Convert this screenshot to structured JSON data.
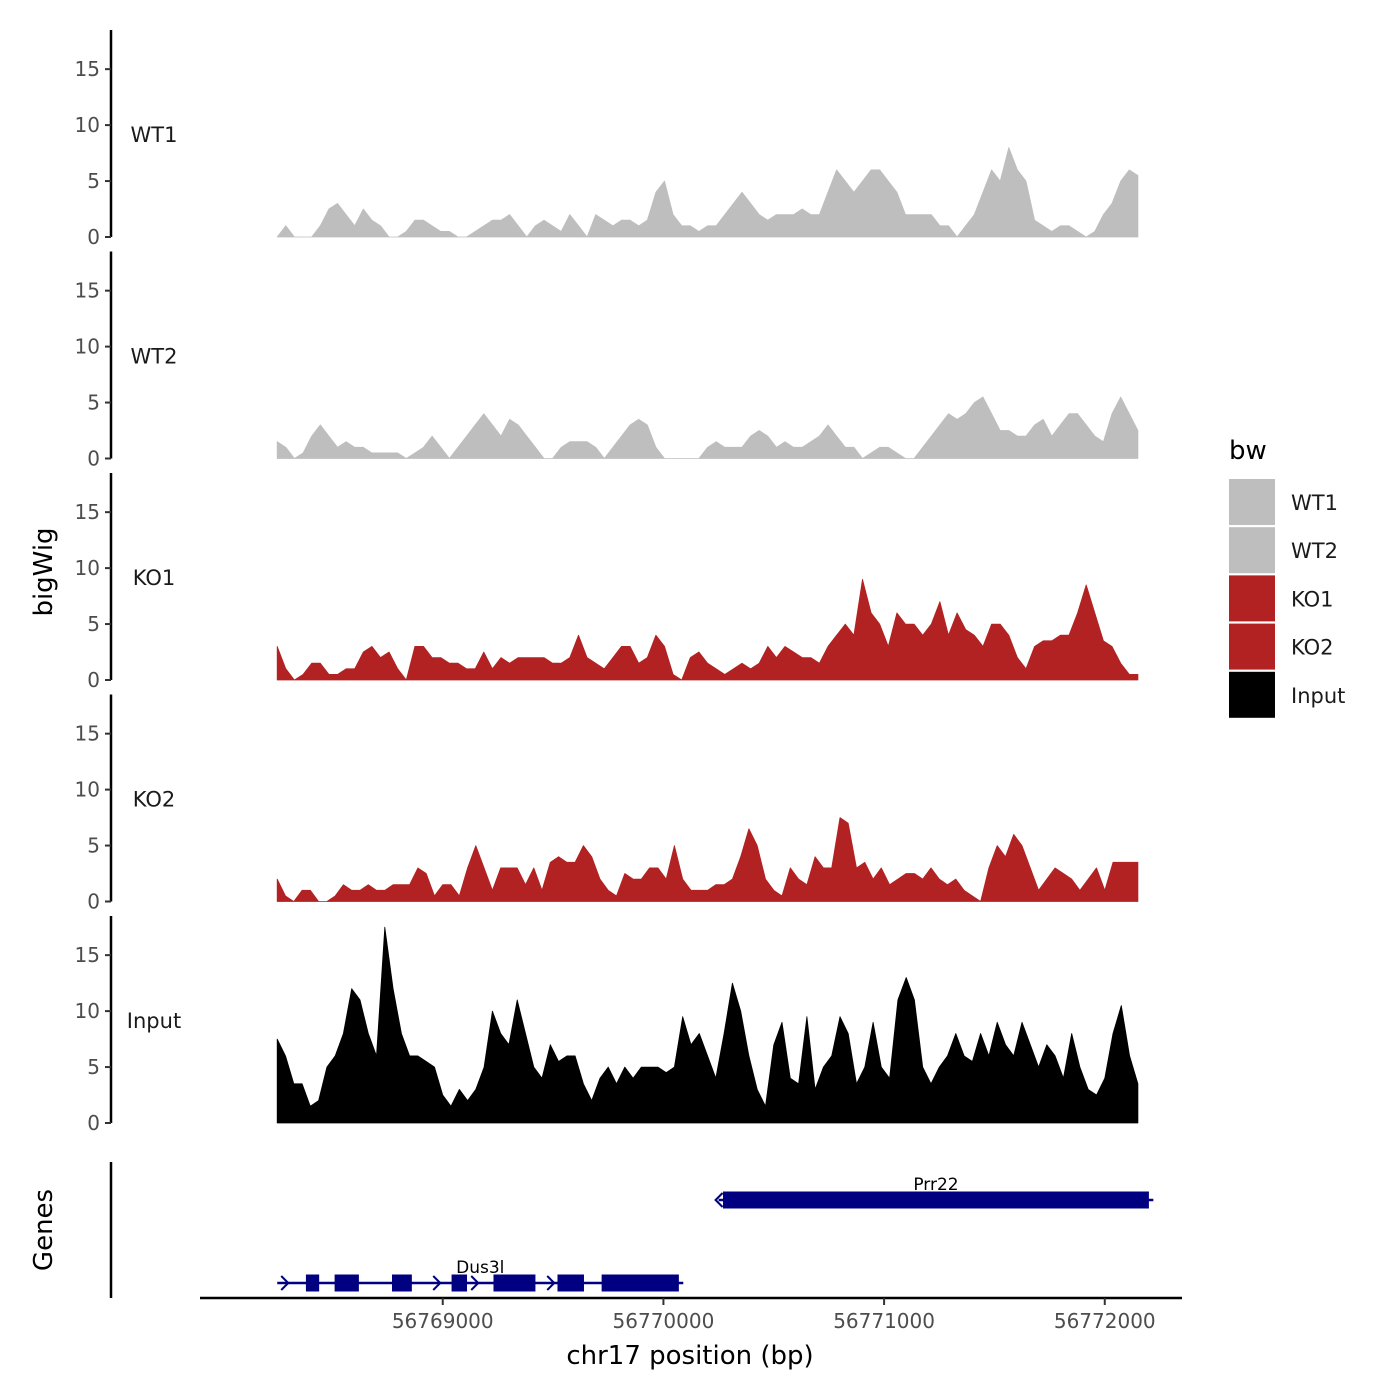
{
  "chart_data": {
    "type": "area",
    "title": "",
    "xlabel": "chr17 position (bp)",
    "ylabel": "bigWig",
    "genes_label": "Genes",
    "xlim": [
      56767900,
      56772350
    ],
    "ylim": [
      0,
      18.5
    ],
    "yticks": [
      0,
      5,
      10,
      15
    ],
    "yticks_text": [
      "0",
      "5",
      "10",
      "15"
    ],
    "xticks": [
      56769000,
      56770000,
      56771000,
      56772000
    ],
    "xticks_text": [
      "56769000",
      "56770000",
      "56771000",
      "56772000"
    ],
    "legend": {
      "title": "bw",
      "placement": "right",
      "entries": [
        {
          "label": "WT1",
          "color": "#bebebe"
        },
        {
          "label": "WT2",
          "color": "#bebebe"
        },
        {
          "label": "KO1",
          "color": "#b22222"
        },
        {
          "label": "KO2",
          "color": "#b22222"
        },
        {
          "label": "Input",
          "color": "#000000"
        }
      ]
    },
    "x_start": 56768250,
    "x_end": 56772150,
    "series": [
      {
        "name": "WT1",
        "color": "#bebebe",
        "values": [
          0,
          1,
          0,
          0,
          0,
          1,
          2.5,
          3,
          2,
          1,
          2.5,
          1.5,
          1,
          0,
          0,
          0.5,
          1.5,
          1.5,
          1,
          0.5,
          0.5,
          0,
          0,
          0.5,
          1,
          1.5,
          1.5,
          2,
          1,
          0,
          1,
          1.5,
          1,
          0.5,
          2,
          1,
          0,
          2,
          1.5,
          1,
          1.5,
          1.5,
          1,
          1.5,
          4,
          5,
          2,
          1,
          1,
          0.5,
          1,
          1,
          2,
          3,
          4,
          3,
          2,
          1.5,
          2,
          2,
          2,
          2.5,
          2,
          2,
          4,
          6,
          5,
          4,
          5,
          6,
          6,
          5,
          4,
          2,
          2,
          2,
          2,
          1,
          1,
          0,
          1,
          2,
          4,
          6,
          5,
          8,
          6,
          5,
          1.5,
          1,
          0.5,
          1,
          1,
          0.5,
          0,
          0.5,
          2,
          3,
          5,
          6,
          5.5
        ]
      },
      {
        "name": "WT2",
        "color": "#bebebe",
        "values": [
          1.5,
          1,
          0,
          0.5,
          2,
          3,
          2,
          1,
          1.5,
          1,
          1,
          0.5,
          0.5,
          0.5,
          0.5,
          0,
          0.5,
          1,
          2,
          1,
          0,
          1,
          2,
          3,
          4,
          3,
          2,
          3.5,
          3,
          2,
          1,
          0,
          0,
          1,
          1.5,
          1.5,
          1.5,
          1,
          0,
          1,
          2,
          3,
          3.5,
          3,
          1,
          0,
          0,
          0,
          0,
          0,
          1,
          1.5,
          1,
          1,
          1,
          2,
          2.5,
          2,
          1,
          1.5,
          1,
          1,
          1.5,
          2,
          3,
          2,
          1,
          1,
          0,
          0.5,
          1,
          1,
          0.5,
          0,
          0,
          1,
          2,
          3,
          4,
          3.5,
          4,
          5,
          5.5,
          4,
          2.5,
          2.5,
          2,
          2,
          3,
          3.5,
          2,
          3,
          4,
          4,
          3,
          2,
          1.5,
          4,
          5.5,
          4,
          2.5
        ]
      },
      {
        "name": "KO1",
        "color": "#b22222",
        "values": [
          3,
          1,
          0,
          0.5,
          1.5,
          1.5,
          0.5,
          0.5,
          1,
          1,
          2.5,
          3,
          2,
          2.5,
          1,
          0,
          3,
          3,
          2,
          2,
          1.5,
          1.5,
          1,
          1,
          2.5,
          1,
          2,
          1.5,
          2,
          2,
          2,
          2,
          1.5,
          1.5,
          2,
          4,
          2,
          1.5,
          1,
          2,
          3,
          3,
          1.5,
          2,
          4,
          3,
          0.5,
          0,
          2,
          2.5,
          1.5,
          1,
          0.5,
          1,
          1.5,
          1,
          1.5,
          3,
          2,
          3,
          2.5,
          2,
          2,
          1.5,
          3,
          4,
          5,
          4,
          9,
          6,
          5,
          3,
          6,
          5,
          5,
          4,
          5,
          7,
          4,
          6,
          4.5,
          4,
          3,
          5,
          5,
          4,
          2,
          1,
          3,
          3.5,
          3.5,
          4,
          4,
          6,
          8.5,
          6,
          3.5,
          3,
          1.5,
          0.5,
          0.5
        ]
      },
      {
        "name": "KO2",
        "color": "#b22222",
        "values": [
          2,
          0.5,
          0,
          1,
          1,
          0,
          0,
          0.5,
          1.5,
          1,
          1,
          1.5,
          1,
          1,
          1.5,
          1.5,
          1.5,
          3,
          2.5,
          0.5,
          1.5,
          1.5,
          0.5,
          3,
          5,
          3,
          1,
          3,
          3,
          3,
          1.5,
          3,
          1,
          3.5,
          4,
          3.5,
          3.5,
          5,
          4,
          2,
          1,
          0.5,
          2.5,
          2,
          2,
          3,
          3,
          2,
          5,
          2,
          1,
          1,
          1,
          1.5,
          1.5,
          2,
          4,
          6.5,
          5,
          2,
          1,
          0.5,
          3,
          2,
          1.5,
          4,
          3,
          3,
          7.5,
          7,
          3,
          3.5,
          2,
          3,
          1.5,
          2,
          2.5,
          2.5,
          2,
          3,
          2,
          1.5,
          2,
          1,
          0.5,
          0,
          3,
          5,
          4,
          6,
          5,
          3,
          1,
          2,
          3,
          2.5,
          2,
          1,
          2,
          3,
          1,
          3.5,
          3.5,
          3.5,
          3.5
        ]
      },
      {
        "name": "Input",
        "color": "#000000",
        "values": [
          7.5,
          6,
          3.5,
          3.5,
          1.5,
          2,
          5,
          6,
          8,
          12,
          11,
          8,
          6,
          17.5,
          12,
          8,
          6,
          6,
          5.5,
          5,
          2.5,
          1.5,
          3,
          2,
          3,
          5,
          10,
          8,
          7,
          11,
          8,
          5,
          4,
          7,
          5.5,
          6,
          6,
          3.5,
          2,
          4,
          5,
          3.5,
          5,
          4,
          5,
          5,
          5,
          4.5,
          5,
          9.5,
          7,
          8,
          6,
          4,
          8,
          12.5,
          10,
          6,
          3,
          1.5,
          7,
          9,
          4,
          3.5,
          9.5,
          3,
          5,
          6,
          9.5,
          8,
          3.5,
          5,
          9,
          5,
          4,
          11,
          13,
          11,
          5,
          3.5,
          5,
          6,
          8,
          6,
          5.5,
          8,
          6,
          9,
          7,
          6,
          9,
          7,
          5,
          7,
          6,
          4,
          8,
          5,
          3,
          2.5,
          4,
          8,
          10.5,
          6,
          3.5
        ]
      }
    ],
    "genes": [
      {
        "name": "Dus3l",
        "strand": "+",
        "start": 56768250,
        "end": 56770090,
        "exons": [
          [
            56768380,
            56768440
          ],
          [
            56768510,
            56768620
          ],
          [
            56768770,
            56768860
          ],
          [
            56769040,
            56769110
          ],
          [
            56769230,
            56769420
          ],
          [
            56769520,
            56769640
          ],
          [
            56769720,
            56770070
          ]
        ]
      },
      {
        "name": "Prr22",
        "strand": "-",
        "start": 56770250,
        "end": 56772220,
        "exons": [
          [
            56770270,
            56772200
          ]
        ]
      }
    ]
  }
}
